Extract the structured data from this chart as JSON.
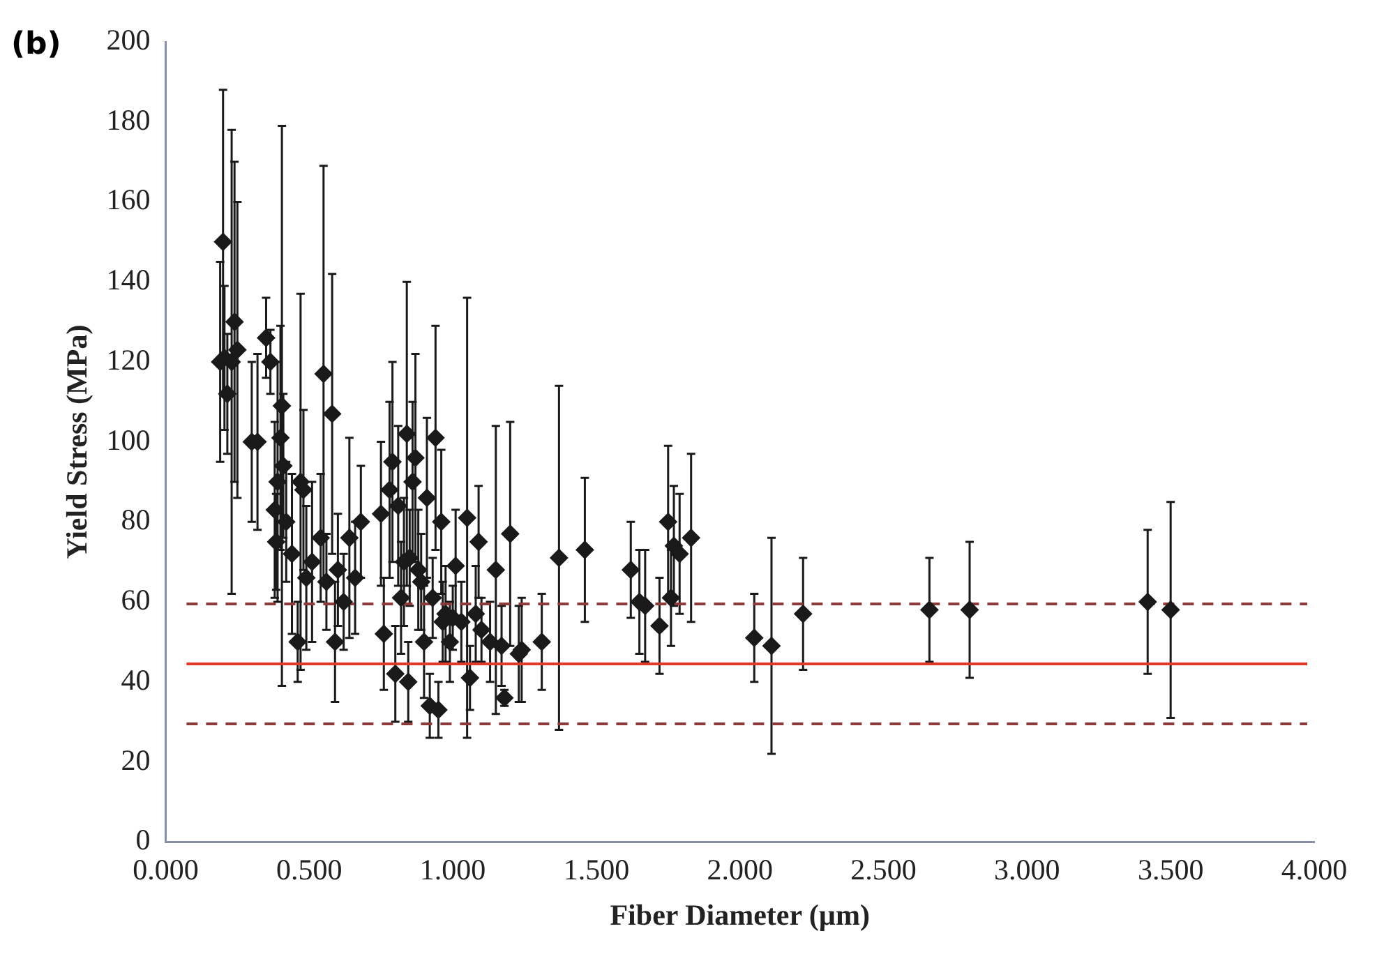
{
  "chart_data": {
    "type": "scatter",
    "xlabel": "Fiber Diameter (µm)",
    "ylabel": "Yield Stress (MPa)",
    "annotations": [
      "(b)"
    ],
    "x": [
      0.2,
      0.19,
      0.205,
      0.215,
      0.23,
      0.24,
      0.25,
      0.3,
      0.32,
      0.35,
      0.365,
      0.38,
      0.385,
      0.39,
      0.4,
      0.405,
      0.41,
      0.42,
      0.44,
      0.46,
      0.47,
      0.48,
      0.49,
      0.51,
      0.54,
      0.55,
      0.56,
      0.58,
      0.59,
      0.6,
      0.62,
      0.64,
      0.66,
      0.68,
      0.75,
      0.76,
      0.78,
      0.79,
      0.8,
      0.81,
      0.82,
      0.83,
      0.84,
      0.845,
      0.85,
      0.86,
      0.87,
      0.88,
      0.89,
      0.9,
      0.91,
      0.92,
      0.93,
      0.94,
      0.95,
      0.96,
      0.965,
      0.975,
      0.99,
      1.0,
      1.01,
      1.03,
      1.05,
      1.06,
      1.08,
      1.09,
      1.1,
      1.13,
      1.15,
      1.17,
      1.18,
      1.2,
      1.23,
      1.24,
      1.31,
      1.37,
      1.46,
      1.62,
      1.65,
      1.67,
      1.72,
      1.75,
      1.76,
      1.77,
      1.79,
      1.83,
      2.05,
      2.11,
      2.22,
      2.66,
      2.8,
      3.42,
      3.5
    ],
    "series": [
      {
        "color": "#1a1a1a",
        "values": [
          150,
          120,
          121,
          112,
          120,
          130,
          123,
          100,
          100,
          126,
          120,
          83,
          75,
          90,
          101,
          109,
          94,
          80,
          72,
          50,
          90,
          88,
          66,
          70,
          76,
          117,
          65,
          107,
          50,
          68,
          60,
          76,
          66,
          80,
          82,
          52,
          88,
          95,
          42,
          84,
          61,
          70,
          102,
          40,
          71,
          90,
          96,
          68,
          65,
          50,
          86,
          34,
          61,
          101,
          33,
          80,
          55,
          57,
          50,
          56,
          69,
          55,
          81,
          41,
          57,
          75,
          53,
          50,
          68,
          49,
          36,
          77,
          47,
          48,
          50,
          71,
          73,
          68,
          60,
          59,
          54,
          80,
          61,
          74,
          72,
          76,
          51,
          49,
          57,
          58,
          58,
          60,
          58
        ],
        "errors": [
          38,
          25,
          18,
          15,
          58,
          40,
          37,
          20,
          22,
          10,
          8,
          22,
          12,
          30,
          28,
          70,
          18,
          15,
          20,
          10,
          47,
          20,
          18,
          20,
          16,
          52,
          12,
          35,
          15,
          14,
          12,
          25,
          14,
          14,
          18,
          14,
          22,
          25,
          12,
          20,
          14,
          16,
          38,
          10,
          12,
          20,
          26,
          15,
          12,
          14,
          20,
          8,
          10,
          28,
          7,
          18,
          10,
          12,
          10,
          8,
          14,
          10,
          55,
          8,
          12,
          14,
          8,
          10,
          36,
          10,
          2,
          28,
          12,
          13,
          12,
          43,
          18,
          12,
          13,
          14,
          12,
          19,
          12,
          15,
          15,
          21,
          11,
          27,
          14,
          13,
          17,
          18,
          27
        ]
      }
    ],
    "marker": "diamond",
    "xlim": [
      0,
      4
    ],
    "xticks": [
      {
        "value": 0,
        "label": "0.000"
      },
      {
        "value": 0.5,
        "label": "0.500"
      },
      {
        "value": 1,
        "label": "1.000"
      },
      {
        "value": 1.5,
        "label": "1.500"
      },
      {
        "value": 2,
        "label": "2.000"
      },
      {
        "value": 2.5,
        "label": "2.500"
      },
      {
        "value": 3,
        "label": "3.000"
      },
      {
        "value": 3.5,
        "label": "3.500"
      },
      {
        "value": 4,
        "label": "4.000"
      }
    ],
    "ylim": [
      0,
      200
    ],
    "yticks": [
      0,
      20,
      40,
      60,
      80,
      100,
      120,
      140,
      160,
      180,
      200
    ],
    "ref_lines": [
      {
        "axis": "y",
        "value": 44.5,
        "color": "#e0392b",
        "line_style": "solid"
      },
      {
        "axis": "y",
        "value": 59.5,
        "color": "#8c3a3a",
        "line_style": "dashed"
      },
      {
        "axis": "y",
        "value": 29.5,
        "color": "#8c3a3a",
        "line_style": "dashed"
      }
    ],
    "grid": false,
    "legend": false
  }
}
